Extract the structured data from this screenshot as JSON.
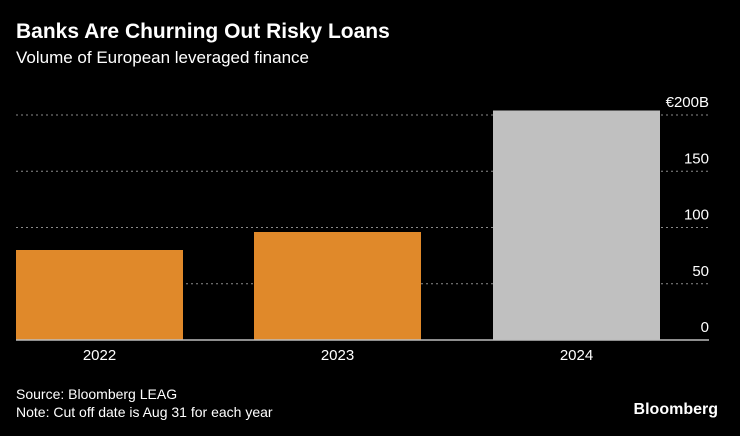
{
  "title": "Banks Are Churning Out Risky Loans",
  "subtitle": "Volume of European leveraged finance",
  "chart_data": {
    "type": "bar",
    "title": "Banks Are Churning Out Risky Loans",
    "subtitle": "Volume of European leveraged finance",
    "categories": [
      "2022",
      "2023",
      "2024"
    ],
    "values": [
      80,
      96,
      204
    ],
    "colors": [
      "#e0892a",
      "#e0892a",
      "#c0c0c0"
    ],
    "unit": "€ billions",
    "ylim": [
      0,
      200
    ],
    "yticks": [
      0,
      50,
      100,
      150,
      200
    ],
    "ytick_labels": [
      "0",
      "50",
      "100",
      "150",
      "€200B"
    ],
    "y_axis_side": "right",
    "grid": true,
    "xlabel": "",
    "ylabel": ""
  },
  "footer": {
    "source": "Source: Bloomberg LEAG",
    "note": "Note: Cut off date is Aug 31 for each year"
  },
  "brand": "Bloomberg"
}
